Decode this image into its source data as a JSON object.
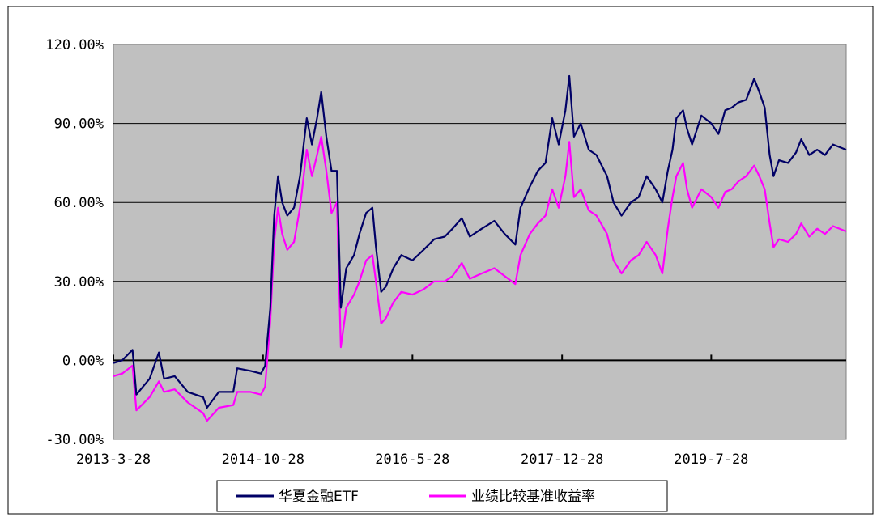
{
  "chart_data": {
    "type": "line",
    "y_ticks": [
      "120.00%",
      "90.00%",
      "60.00%",
      "30.00%",
      "0.00%",
      "-30.00%"
    ],
    "y_tick_values": [
      120,
      90,
      60,
      30,
      0,
      -30
    ],
    "x_ticks": [
      "2013-3-28",
      "2014-10-28",
      "2016-5-28",
      "2017-12-28",
      "2019-7-28"
    ],
    "x_tick_dates": [
      "2013-03-28",
      "2014-10-28",
      "2016-05-28",
      "2017-12-28",
      "2019-07-28"
    ],
    "x_range": [
      "2013-03-28",
      "2020-12-31"
    ],
    "ylim": [
      -30,
      120
    ],
    "grid": "horizontal",
    "legend_position": "bottom",
    "plot_background": "#c0c0c0",
    "series": [
      {
        "name": "华夏金融ETF",
        "color": "#000066",
        "points": [
          [
            "2013-03-28",
            -1
          ],
          [
            "2013-05-01",
            0
          ],
          [
            "2013-06-10",
            4
          ],
          [
            "2013-06-25",
            -13
          ],
          [
            "2013-08-15",
            -7
          ],
          [
            "2013-09-20",
            3
          ],
          [
            "2013-10-10",
            -7
          ],
          [
            "2013-11-20",
            -6
          ],
          [
            "2014-01-10",
            -12
          ],
          [
            "2014-03-10",
            -14
          ],
          [
            "2014-03-25",
            -18
          ],
          [
            "2014-05-10",
            -12
          ],
          [
            "2014-07-05",
            -12
          ],
          [
            "2014-07-20",
            -3
          ],
          [
            "2014-09-10",
            -4
          ],
          [
            "2014-10-20",
            -5
          ],
          [
            "2014-11-05",
            -2
          ],
          [
            "2014-11-25",
            20
          ],
          [
            "2014-12-10",
            55
          ],
          [
            "2014-12-25",
            70
          ],
          [
            "2015-01-10",
            60
          ],
          [
            "2015-01-30",
            55
          ],
          [
            "2015-02-25",
            58
          ],
          [
            "2015-03-20",
            70
          ],
          [
            "2015-04-15",
            92
          ],
          [
            "2015-05-05",
            82
          ],
          [
            "2015-05-25",
            92
          ],
          [
            "2015-06-10",
            102
          ],
          [
            "2015-06-30",
            85
          ],
          [
            "2015-07-20",
            72
          ],
          [
            "2015-08-10",
            72
          ],
          [
            "2015-08-25",
            20
          ],
          [
            "2015-09-15",
            35
          ],
          [
            "2015-10-15",
            40
          ],
          [
            "2015-11-05",
            48
          ],
          [
            "2015-12-01",
            56
          ],
          [
            "2015-12-25",
            58
          ],
          [
            "2016-01-08",
            43
          ],
          [
            "2016-01-28",
            26
          ],
          [
            "2016-02-15",
            28
          ],
          [
            "2016-03-15",
            35
          ],
          [
            "2016-04-15",
            40
          ],
          [
            "2016-05-28",
            38
          ],
          [
            "2016-07-10",
            42
          ],
          [
            "2016-08-20",
            46
          ],
          [
            "2016-09-30",
            47
          ],
          [
            "2016-10-30",
            50
          ],
          [
            "2016-12-05",
            54
          ],
          [
            "2017-01-05",
            47
          ],
          [
            "2017-02-20",
            50
          ],
          [
            "2017-04-10",
            53
          ],
          [
            "2017-05-20",
            48
          ],
          [
            "2017-06-30",
            44
          ],
          [
            "2017-07-20",
            58
          ],
          [
            "2017-08-25",
            66
          ],
          [
            "2017-09-25",
            72
          ],
          [
            "2017-10-25",
            75
          ],
          [
            "2017-11-20",
            92
          ],
          [
            "2017-12-15",
            82
          ],
          [
            "2018-01-10",
            95
          ],
          [
            "2018-01-25",
            108
          ],
          [
            "2018-02-12",
            85
          ],
          [
            "2018-03-10",
            90
          ],
          [
            "2018-04-10",
            80
          ],
          [
            "2018-05-10",
            78
          ],
          [
            "2018-06-20",
            70
          ],
          [
            "2018-07-15",
            60
          ],
          [
            "2018-08-15",
            55
          ],
          [
            "2018-09-20",
            60
          ],
          [
            "2018-10-20",
            62
          ],
          [
            "2018-11-20",
            70
          ],
          [
            "2018-12-25",
            65
          ],
          [
            "2019-01-20",
            60
          ],
          [
            "2019-02-10",
            72
          ],
          [
            "2019-02-28",
            80
          ],
          [
            "2019-03-15",
            92
          ],
          [
            "2019-04-10",
            95
          ],
          [
            "2019-04-25",
            88
          ],
          [
            "2019-05-15",
            82
          ],
          [
            "2019-06-20",
            93
          ],
          [
            "2019-07-28",
            90
          ],
          [
            "2019-08-25",
            86
          ],
          [
            "2019-09-20",
            95
          ],
          [
            "2019-10-15",
            96
          ],
          [
            "2019-11-10",
            98
          ],
          [
            "2019-12-10",
            99
          ],
          [
            "2020-01-10",
            107
          ],
          [
            "2020-01-30",
            102
          ],
          [
            "2020-02-20",
            96
          ],
          [
            "2020-03-10",
            78
          ],
          [
            "2020-03-25",
            70
          ],
          [
            "2020-04-15",
            76
          ],
          [
            "2020-05-20",
            75
          ],
          [
            "2020-06-20",
            79
          ],
          [
            "2020-07-10",
            84
          ],
          [
            "2020-08-10",
            78
          ],
          [
            "2020-09-10",
            80
          ],
          [
            "2020-10-10",
            78
          ],
          [
            "2020-11-10",
            82
          ],
          [
            "2020-12-31",
            80
          ]
        ]
      },
      {
        "name": "业绩比较基准收益率",
        "color": "#ff00ff",
        "points": [
          [
            "2013-03-28",
            -6
          ],
          [
            "2013-05-01",
            -5
          ],
          [
            "2013-06-10",
            -2
          ],
          [
            "2013-06-25",
            -19
          ],
          [
            "2013-08-15",
            -14
          ],
          [
            "2013-09-20",
            -8
          ],
          [
            "2013-10-10",
            -12
          ],
          [
            "2013-11-20",
            -11
          ],
          [
            "2014-01-10",
            -16
          ],
          [
            "2014-03-10",
            -20
          ],
          [
            "2014-03-25",
            -23
          ],
          [
            "2014-05-10",
            -18
          ],
          [
            "2014-07-05",
            -17
          ],
          [
            "2014-07-20",
            -12
          ],
          [
            "2014-09-10",
            -12
          ],
          [
            "2014-10-20",
            -13
          ],
          [
            "2014-11-05",
            -10
          ],
          [
            "2014-11-25",
            15
          ],
          [
            "2014-12-10",
            45
          ],
          [
            "2014-12-25",
            58
          ],
          [
            "2015-01-10",
            48
          ],
          [
            "2015-01-30",
            42
          ],
          [
            "2015-02-25",
            45
          ],
          [
            "2015-03-20",
            58
          ],
          [
            "2015-04-15",
            80
          ],
          [
            "2015-05-05",
            70
          ],
          [
            "2015-05-25",
            78
          ],
          [
            "2015-06-10",
            85
          ],
          [
            "2015-06-30",
            72
          ],
          [
            "2015-07-20",
            56
          ],
          [
            "2015-08-10",
            60
          ],
          [
            "2015-08-25",
            5
          ],
          [
            "2015-09-15",
            20
          ],
          [
            "2015-10-15",
            25
          ],
          [
            "2015-11-05",
            30
          ],
          [
            "2015-12-01",
            38
          ],
          [
            "2015-12-25",
            40
          ],
          [
            "2016-01-08",
            30
          ],
          [
            "2016-01-28",
            14
          ],
          [
            "2016-02-15",
            16
          ],
          [
            "2016-03-15",
            22
          ],
          [
            "2016-04-15",
            26
          ],
          [
            "2016-05-28",
            25
          ],
          [
            "2016-07-10",
            27
          ],
          [
            "2016-08-20",
            30
          ],
          [
            "2016-09-30",
            30
          ],
          [
            "2016-10-30",
            32
          ],
          [
            "2016-12-05",
            37
          ],
          [
            "2017-01-05",
            31
          ],
          [
            "2017-02-20",
            33
          ],
          [
            "2017-04-10",
            35
          ],
          [
            "2017-05-20",
            32
          ],
          [
            "2017-06-30",
            29
          ],
          [
            "2017-07-20",
            40
          ],
          [
            "2017-08-25",
            48
          ],
          [
            "2017-09-25",
            52
          ],
          [
            "2017-10-25",
            55
          ],
          [
            "2017-11-20",
            65
          ],
          [
            "2017-12-15",
            58
          ],
          [
            "2018-01-10",
            70
          ],
          [
            "2018-01-25",
            83
          ],
          [
            "2018-02-12",
            62
          ],
          [
            "2018-03-10",
            65
          ],
          [
            "2018-04-10",
            57
          ],
          [
            "2018-05-10",
            55
          ],
          [
            "2018-06-20",
            48
          ],
          [
            "2018-07-15",
            38
          ],
          [
            "2018-08-15",
            33
          ],
          [
            "2018-09-20",
            38
          ],
          [
            "2018-10-20",
            40
          ],
          [
            "2018-11-20",
            45
          ],
          [
            "2018-12-25",
            40
          ],
          [
            "2019-01-20",
            33
          ],
          [
            "2019-02-10",
            50
          ],
          [
            "2019-02-28",
            62
          ],
          [
            "2019-03-15",
            70
          ],
          [
            "2019-04-10",
            75
          ],
          [
            "2019-04-25",
            65
          ],
          [
            "2019-05-15",
            58
          ],
          [
            "2019-06-20",
            65
          ],
          [
            "2019-07-28",
            62
          ],
          [
            "2019-08-25",
            58
          ],
          [
            "2019-09-20",
            64
          ],
          [
            "2019-10-15",
            65
          ],
          [
            "2019-11-10",
            68
          ],
          [
            "2019-12-10",
            70
          ],
          [
            "2020-01-10",
            74
          ],
          [
            "2020-01-30",
            70
          ],
          [
            "2020-02-20",
            65
          ],
          [
            "2020-03-10",
            52
          ],
          [
            "2020-03-25",
            43
          ],
          [
            "2020-04-15",
            46
          ],
          [
            "2020-05-20",
            45
          ],
          [
            "2020-06-20",
            48
          ],
          [
            "2020-07-10",
            52
          ],
          [
            "2020-08-10",
            47
          ],
          [
            "2020-09-10",
            50
          ],
          [
            "2020-10-10",
            48
          ],
          [
            "2020-11-10",
            51
          ],
          [
            "2020-12-31",
            49
          ]
        ]
      }
    ]
  }
}
